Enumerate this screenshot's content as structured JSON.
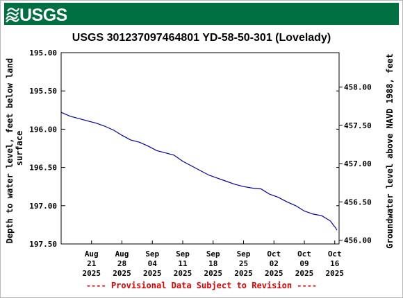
{
  "header": {
    "logo_text": "USGS",
    "brand_color": "#006f41"
  },
  "chart_data": {
    "type": "line",
    "title": "USGS 301237097464801 YD-58-50-301 (Lovelady)",
    "ylabel": "Depth to water level, feet below land surface",
    "ylabel_lines": [
      "Depth to water level, feet below land",
      "surface"
    ],
    "y2label": "Groundwater level above NAVD 1988, feet",
    "y_inverted": true,
    "ylim": [
      195.0,
      197.5
    ],
    "y_ticks": [
      "195.00",
      "195.50",
      "196.00",
      "196.50",
      "197.00",
      "197.50"
    ],
    "y2lim": [
      458.45,
      455.95
    ],
    "y2_ticks": [
      "458.00",
      "457.50",
      "457.00",
      "456.50",
      "456.00"
    ],
    "xlim": [
      "2025-08-14",
      "2025-10-17"
    ],
    "x_ticks": [
      {
        "date": "2025-08-21",
        "lines": [
          "Aug",
          "21",
          "2025"
        ]
      },
      {
        "date": "2025-08-28",
        "lines": [
          "Aug",
          "28",
          "2025"
        ]
      },
      {
        "date": "2025-09-04",
        "lines": [
          "Sep",
          "04",
          "2025"
        ]
      },
      {
        "date": "2025-09-11",
        "lines": [
          "Sep",
          "11",
          "2025"
        ]
      },
      {
        "date": "2025-09-18",
        "lines": [
          "Sep",
          "18",
          "2025"
        ]
      },
      {
        "date": "2025-09-25",
        "lines": [
          "Sep",
          "25",
          "2025"
        ]
      },
      {
        "date": "2025-10-02",
        "lines": [
          "Oct",
          "02",
          "2025"
        ]
      },
      {
        "date": "2025-10-09",
        "lines": [
          "Oct",
          "09",
          "2025"
        ]
      },
      {
        "date": "2025-10-16",
        "lines": [
          "Oct",
          "16",
          "2025"
        ]
      }
    ],
    "grid": false,
    "series": [
      {
        "color": "#0000aa",
        "points": [
          [
            "2025-08-14",
            195.78
          ],
          [
            "2025-08-16",
            195.83
          ],
          [
            "2025-08-18",
            195.86
          ],
          [
            "2025-08-20",
            195.89
          ],
          [
            "2025-08-22",
            195.92
          ],
          [
            "2025-08-24",
            195.96
          ],
          [
            "2025-08-26",
            196.01
          ],
          [
            "2025-08-28",
            196.08
          ],
          [
            "2025-08-30",
            196.14
          ],
          [
            "2025-09-01",
            196.17
          ],
          [
            "2025-09-03",
            196.22
          ],
          [
            "2025-09-05",
            196.28
          ],
          [
            "2025-09-07",
            196.31
          ],
          [
            "2025-09-09",
            196.34
          ],
          [
            "2025-09-11",
            196.42
          ],
          [
            "2025-09-13",
            196.48
          ],
          [
            "2025-09-15",
            196.54
          ],
          [
            "2025-09-17",
            196.6
          ],
          [
            "2025-09-19",
            196.64
          ],
          [
            "2025-09-21",
            196.68
          ],
          [
            "2025-09-23",
            196.72
          ],
          [
            "2025-09-25",
            196.75
          ],
          [
            "2025-09-27",
            196.77
          ],
          [
            "2025-09-29",
            196.78
          ],
          [
            "2025-10-01",
            196.85
          ],
          [
            "2025-10-03",
            196.89
          ],
          [
            "2025-10-05",
            196.95
          ],
          [
            "2025-10-07",
            197.0
          ],
          [
            "2025-10-09",
            197.07
          ],
          [
            "2025-10-11",
            197.11
          ],
          [
            "2025-10-13",
            197.13
          ],
          [
            "2025-10-15",
            197.2
          ],
          [
            "2025-10-17",
            197.27
          ],
          [
            "2025-10-19",
            197.29
          ],
          [
            "2025-10-21",
            197.32
          ]
        ]
      }
    ],
    "annotation": "---- Provisional Data Subject to Revision ----"
  }
}
